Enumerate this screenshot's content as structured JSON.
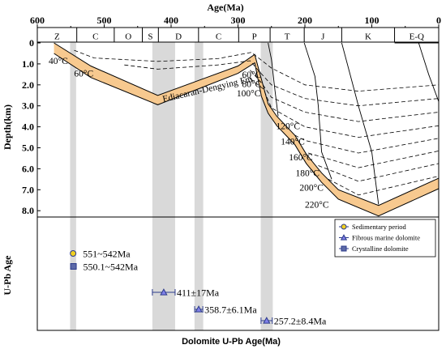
{
  "chart_data": {
    "type": "line",
    "x_axis": {
      "label": "Age(Ma)",
      "range": [
        600,
        0
      ],
      "ticks": [
        600,
        500,
        400,
        300,
        200,
        100,
        0
      ],
      "reversed": true
    },
    "upper_panel": {
      "ylabel": "Depth(km)",
      "yrange": [
        0,
        8.5
      ],
      "yticks": [
        "0",
        "1.0",
        "2.0",
        "3.0",
        "4.0",
        "5.0",
        "6.0",
        "7.0",
        "8.0"
      ],
      "yticks_values": [
        0,
        1,
        2,
        3,
        4,
        5,
        6,
        7,
        8
      ],
      "periods": [
        {
          "label": "Z",
          "from": 600,
          "to": 541
        },
        {
          "label": "C",
          "from": 541,
          "to": 485
        },
        {
          "label": "O",
          "from": 485,
          "to": 443
        },
        {
          "label": "S",
          "from": 443,
          "to": 419
        },
        {
          "label": "D",
          "from": 419,
          "to": 359
        },
        {
          "label": "C",
          "from": 359,
          "to": 299
        },
        {
          "label": "P",
          "from": 299,
          "to": 252
        },
        {
          "label": "T",
          "from": 252,
          "to": 201
        },
        {
          "label": "J",
          "from": 201,
          "to": 145
        },
        {
          "label": "K",
          "from": 145,
          "to": 66
        },
        {
          "label": "E-Q",
          "from": 66,
          "to": 0
        }
      ],
      "formation": {
        "label": "Ediacaran-Dengying Fm.",
        "top": [
          [
            575,
            0
          ],
          [
            520,
            1.1
          ],
          [
            420,
            2.5
          ],
          [
            300,
            1.1
          ],
          [
            275,
            0.55
          ],
          [
            255,
            2.9
          ],
          [
            242,
            3.5
          ],
          [
            215,
            4.4
          ],
          [
            198,
            5.3
          ],
          [
            175,
            6.2
          ],
          [
            150,
            7.0
          ],
          [
            90,
            7.75
          ],
          [
            0,
            6.45
          ]
        ],
        "bottom": [
          [
            575,
            0.5
          ],
          [
            520,
            1.65
          ],
          [
            420,
            2.95
          ],
          [
            300,
            1.45
          ],
          [
            275,
            0.95
          ],
          [
            265,
            2.55
          ],
          [
            255,
            3.35
          ],
          [
            242,
            3.95
          ],
          [
            215,
            4.85
          ],
          [
            198,
            5.75
          ],
          [
            175,
            6.65
          ],
          [
            150,
            7.45
          ],
          [
            90,
            8.25
          ],
          [
            0,
            6.95
          ]
        ]
      },
      "isotherms": [
        {
          "label": "40°C",
          "points": [
            [
              545,
              0.35
            ],
            [
              515,
              0.72
            ],
            [
              420,
              0.88
            ],
            [
              330,
              0.75
            ],
            [
              280,
              0.45
            ],
            [
              250,
              1.2
            ],
            [
              200,
              2.0
            ],
            [
              120,
              2.3
            ],
            [
              0,
              2.0
            ]
          ]
        },
        {
          "label": "60°C",
          "points": [
            [
              470,
              1.05
            ],
            [
              420,
              1.25
            ],
            [
              330,
              1.05
            ],
            [
              282,
              0.85
            ],
            [
              270,
              1.3
            ],
            [
              250,
              2.0
            ],
            [
              200,
              2.65
            ],
            [
              120,
              3.0
            ],
            [
              0,
              2.65
            ]
          ]
        },
        {
          "label": "80°C",
          "points": [
            [
              282,
              1.3
            ],
            [
              265,
              1.9
            ],
            [
              250,
              2.6
            ],
            [
              200,
              3.3
            ],
            [
              120,
              3.75
            ],
            [
              0,
              3.3
            ]
          ]
        },
        {
          "label": "100°C",
          "points": [
            [
              282,
              1.7
            ],
            [
              262,
              2.2
            ],
            [
              250,
              3.1
            ],
            [
              200,
              4.0
            ],
            [
              120,
              4.5
            ],
            [
              0,
              3.95
            ]
          ]
        },
        {
          "label": "120°C",
          "points": [
            [
              215,
              4.4
            ],
            [
              200,
              4.65
            ],
            [
              120,
              5.25
            ],
            [
              0,
              4.55
            ]
          ]
        },
        {
          "label": "140°C",
          "points": [
            [
              195,
              5.25
            ],
            [
              120,
              5.95
            ],
            [
              0,
              5.15
            ]
          ]
        },
        {
          "label": "160°C",
          "points": [
            [
              180,
              5.85
            ],
            [
              120,
              6.6
            ],
            [
              0,
              5.75
            ]
          ]
        },
        {
          "label": "180°C",
          "points": [
            [
              165,
              6.5
            ],
            [
              120,
              7.25
            ],
            [
              0,
              6.35
            ]
          ]
        }
      ],
      "burial_lines": [
        {
          "points": [
            [
              255,
              0
            ],
            [
              250,
              0.8
            ],
            [
              245,
              2.2
            ],
            [
              240,
              3.5
            ]
          ]
        },
        {
          "points": [
            [
              201,
              0
            ],
            [
              185,
              1.6
            ],
            [
              180,
              3.0
            ],
            [
              175,
              5.2
            ],
            [
              160,
              6.5
            ]
          ]
        },
        {
          "points": [
            [
              145,
              0
            ],
            [
              130,
              1.8
            ],
            [
              120,
              3.0
            ],
            [
              100,
              5.2
            ],
            [
              90,
              7.7
            ]
          ]
        },
        {
          "points": [
            [
              66,
              0
            ],
            [
              0,
              0
            ]
          ]
        },
        {
          "points": [
            [
              30,
              0
            ],
            [
              15,
              1.5
            ],
            [
              0,
              2.8
            ]
          ]
        }
      ],
      "temperature_labels": [
        {
          "text": "40°C",
          "x": 583,
          "y": 0.85
        },
        {
          "text": "60°C",
          "x": 545,
          "y": 1.45
        },
        {
          "text": "60°C",
          "x": 294,
          "y": 1.5
        },
        {
          "text": "80°C",
          "x": 294,
          "y": 1.95
        },
        {
          "text": "100°C",
          "x": 302,
          "y": 2.4
        },
        {
          "text": "120°C",
          "x": 243,
          "y": 3.95
        },
        {
          "text": "140°C",
          "x": 236,
          "y": 4.7
        },
        {
          "text": "160°C",
          "x": 224,
          "y": 5.45
        },
        {
          "text": "180°C",
          "x": 214,
          "y": 6.2
        },
        {
          "text": "200°C",
          "x": 208,
          "y": 6.9
        },
        {
          "text": "220°C",
          "x": 200,
          "y": 7.7
        }
      ],
      "shaded_bands": [
        [
          551,
          542
        ],
        [
          428,
          394
        ],
        [
          365,
          352
        ],
        [
          266,
          248
        ]
      ]
    },
    "lower_panel": {
      "ylabel": "U-Pb Age",
      "xlabel": "Dolomite U-Pb  Age(Ma)",
      "legend": {
        "position": "top-right",
        "entries": [
          {
            "name": "Sedimentary period",
            "marker": "circle",
            "color": "#f0d020"
          },
          {
            "name": "Fibrous marine dolomite",
            "marker": "triangle",
            "color": "#8080e8"
          },
          {
            "name": "Crystalline dolomite",
            "marker": "square",
            "color": "#5d6aa8"
          }
        ]
      },
      "points": [
        {
          "label": "551~542Ma",
          "marker": "circle",
          "age": 546.5,
          "min": 542,
          "max": 551,
          "row": 1
        },
        {
          "label": "550.1~542Ma",
          "marker": "square",
          "age": 546.0,
          "min": 542,
          "max": 550.1,
          "row": 2
        },
        {
          "label": "411±17Ma",
          "marker": "triangle",
          "age": 411,
          "err": 17,
          "row": 3
        },
        {
          "label": "358.7±6.1Ma",
          "marker": "triangle",
          "age": 358.7,
          "err": 6.1,
          "row": 4
        },
        {
          "label": "257.2±8.4Ma",
          "marker": "triangle",
          "age": 257.2,
          "err": 8.4,
          "row": 5
        }
      ]
    },
    "colors": {
      "formation": "#f7c98f",
      "band": "#d9d9d9"
    }
  }
}
